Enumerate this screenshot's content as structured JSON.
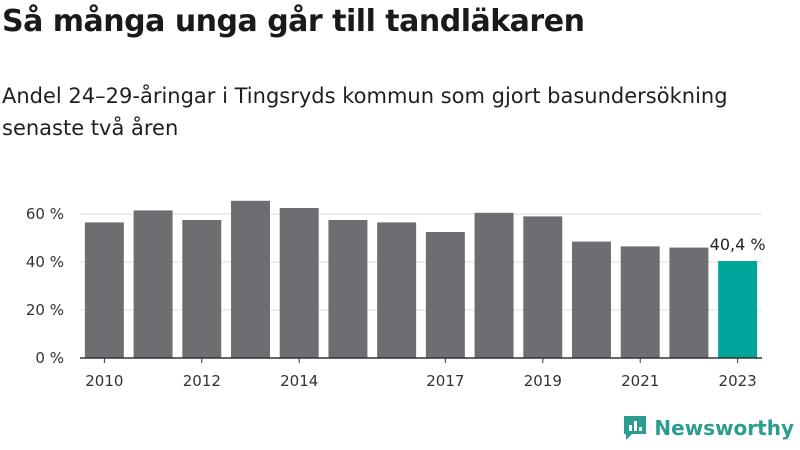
{
  "title": "Så många unga går till tandläkaren",
  "subtitle": "Andel 24–29-åringar i Tingsryds kommun som gjort basundersökning senaste två åren",
  "brand": "Newsworthy",
  "colors": {
    "bar": "#6e6e72",
    "highlight": "#00a499",
    "axis": "#333333",
    "grid": "#dddddd",
    "brand": "#2a9d8f"
  },
  "chart_data": {
    "type": "bar",
    "categories": [
      "2010",
      "2011",
      "2012",
      "2013",
      "2014",
      "2015",
      "2016",
      "2017",
      "2018",
      "2019",
      "2020",
      "2021",
      "2022",
      "2023"
    ],
    "x_tick_labels": [
      "2010",
      "",
      "2012",
      "",
      "2014",
      "",
      "",
      "2017",
      "",
      "2019",
      "",
      "2021",
      "",
      "2023"
    ],
    "values": [
      56.5,
      61.5,
      57.5,
      65.5,
      62.5,
      57.5,
      56.5,
      52.5,
      60.5,
      59.0,
      48.5,
      46.5,
      46.0,
      40.4
    ],
    "highlight_index": 13,
    "highlight_label": "40,4 %",
    "ylim": [
      0,
      70
    ],
    "y_ticks": [
      0,
      20,
      40,
      60
    ],
    "y_tick_labels": [
      "0 %",
      "20 %",
      "40 %",
      "60 %"
    ],
    "grid": true,
    "xlabel": "",
    "ylabel": ""
  }
}
